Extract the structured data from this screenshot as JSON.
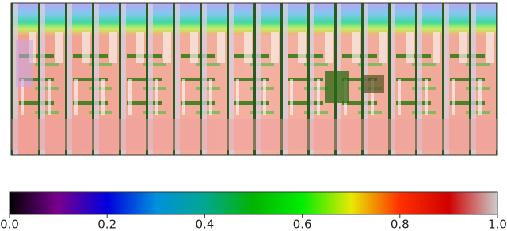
{
  "chart_data": {
    "type": "colorbar",
    "colors": [
      "#000000",
      "#7a0090",
      "#0000dd",
      "#0090dd",
      "#00a890",
      "#00b400",
      "#00ee00",
      "#e8e800",
      "#ff3000",
      "#d00000",
      "#cccccc"
    ],
    "xlim": [
      0,
      1
    ],
    "xticks": [
      {
        "value": 0,
        "label": "0.0"
      },
      0.2,
      0.4,
      0.6,
      0.8,
      {
        "value": 1,
        "label": "1.0"
      }
    ]
  }
}
